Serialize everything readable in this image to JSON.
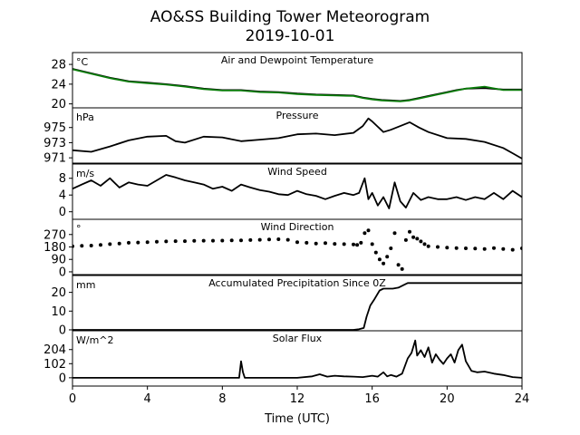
{
  "chart_data": {
    "type": "line",
    "title": "AO&SS Building Tower Meteorogram",
    "subtitle": "2019-10-01",
    "xlabel": "Time (UTC)",
    "xlim": [
      0,
      24
    ],
    "x_ticks": [
      "0",
      "4",
      "8",
      "12",
      "16",
      "20",
      "24"
    ],
    "panels": [
      {
        "title": "Air and Dewpoint Temperature",
        "unit": "°C",
        "ylim": [
          19.2,
          30.4
        ],
        "y_ticks": [
          "20",
          "24",
          "28"
        ],
        "y_tick_values": [
          20,
          24,
          28
        ],
        "series": [
          {
            "color": "#000000",
            "style": "line",
            "x": [
              0,
              1,
              2,
              3,
              4,
              5,
              6,
              7,
              8,
              9,
              10,
              11,
              12,
              13,
              14,
              15,
              15.5,
              16,
              16.5,
              17,
              17.5,
              18,
              18.5,
              19,
              19.5,
              20,
              20.5,
              21,
              22,
              23,
              24
            ],
            "y": [
              27.1,
              26.2,
              25.3,
              24.6,
              24.3,
              24.0,
              23.6,
              23.1,
              22.8,
              22.8,
              22.5,
              22.4,
              22.1,
              21.9,
              21.8,
              21.7,
              21.3,
              21.0,
              20.8,
              20.7,
              20.6,
              20.8,
              21.2,
              21.6,
              22.0,
              22.4,
              22.8,
              23.1,
              23.2,
              22.9,
              22.9
            ]
          },
          {
            "color": "#0a7d0a",
            "style": "line",
            "x": [
              0,
              1,
              2,
              3,
              4,
              5,
              6,
              7,
              8,
              9,
              10,
              11,
              12,
              13,
              14,
              15,
              15.5,
              16,
              16.5,
              17,
              17.5,
              18,
              18.5,
              19,
              19.5,
              20,
              20.5,
              21,
              22,
              23,
              24
            ],
            "y": [
              27.0,
              26.1,
              25.2,
              24.5,
              24.2,
              23.9,
              23.5,
              23.0,
              22.7,
              22.7,
              22.4,
              22.3,
              22.0,
              21.8,
              21.7,
              21.6,
              21.2,
              20.9,
              20.7,
              20.6,
              20.5,
              20.7,
              21.1,
              21.5,
              21.9,
              22.3,
              22.7,
              23.1,
              23.5,
              22.8,
              22.8
            ]
          }
        ]
      },
      {
        "title": "Pressure",
        "unit": "hPa",
        "ylim": [
          970.3,
          977.6
        ],
        "y_ticks": [
          "971",
          "973",
          "975"
        ],
        "y_tick_values": [
          971,
          973,
          975
        ],
        "series": [
          {
            "color": "#000000",
            "style": "line",
            "x": [
              0,
              1,
              2,
              3,
              4,
              5,
              5.5,
              6,
              7,
              8,
              9,
              10,
              11,
              12,
              13,
              14,
              15,
              15.5,
              15.8,
              16,
              16.3,
              16.6,
              17,
              17.5,
              18,
              18.5,
              19,
              20,
              21,
              22,
              23,
              23.5,
              24
            ],
            "y": [
              972.0,
              971.8,
              972.5,
              973.3,
              973.8,
              973.9,
              973.2,
              973.0,
              973.8,
              973.7,
              973.2,
              973.4,
              973.6,
              974.1,
              974.2,
              974.0,
              974.3,
              975.2,
              976.2,
              975.8,
              975.1,
              974.4,
              974.7,
              975.2,
              975.7,
              975.0,
              974.4,
              973.6,
              973.5,
              973.1,
              972.3,
              971.6,
              970.9
            ]
          }
        ]
      },
      {
        "title": "Wind Speed",
        "unit": "m/s",
        "ylim": [
          -1.8,
          11.4
        ],
        "y_ticks": [
          "0",
          "4",
          "8"
        ],
        "y_tick_values": [
          0,
          4,
          8
        ],
        "series": [
          {
            "color": "#000000",
            "style": "line",
            "x": [
              0,
              0.5,
              1,
              1.5,
              2,
              2.5,
              3,
              3.5,
              4,
              4.5,
              5,
              5.5,
              6,
              6.5,
              7,
              7.5,
              8,
              8.5,
              9,
              9.5,
              10,
              10.5,
              11,
              11.5,
              12,
              12.5,
              13,
              13.5,
              14,
              14.5,
              15,
              15.3,
              15.6,
              15.8,
              16,
              16.3,
              16.6,
              16.9,
              17.2,
              17.5,
              17.8,
              18.2,
              18.6,
              19,
              19.5,
              20,
              20.5,
              21,
              21.5,
              22,
              22.5,
              23,
              23.5,
              24
            ],
            "y": [
              5.5,
              6.5,
              7.5,
              6.2,
              8.0,
              5.8,
              7.0,
              6.5,
              6.2,
              7.5,
              8.8,
              8.2,
              7.5,
              7.0,
              6.5,
              5.5,
              6.0,
              5.0,
              6.5,
              5.8,
              5.2,
              4.8,
              4.2,
              4.0,
              5.0,
              4.2,
              3.8,
              3.0,
              3.8,
              4.5,
              4.0,
              4.5,
              8.0,
              3.0,
              4.5,
              1.5,
              3.5,
              0.8,
              7.0,
              2.5,
              1.0,
              4.5,
              2.8,
              3.5,
              3.0,
              3.0,
              3.5,
              2.8,
              3.5,
              3.0,
              4.5,
              3.0,
              5.0,
              3.5
            ]
          }
        ]
      },
      {
        "title": "Wind Direction",
        "unit": "°",
        "ylim": [
          -20,
          380
        ],
        "y_ticks": [
          "0",
          "90",
          "180",
          "270"
        ],
        "y_tick_values": [
          0,
          90,
          180,
          270
        ],
        "series": [
          {
            "color": "#000000",
            "style": "dots",
            "x": [
              0,
              0.5,
              1,
              1.5,
              2,
              2.5,
              3,
              3.5,
              4,
              4.5,
              5,
              5.5,
              6,
              6.5,
              7,
              7.5,
              8,
              8.5,
              9,
              9.5,
              10,
              10.5,
              11,
              11.5,
              12,
              12.5,
              13,
              13.5,
              14,
              14.5,
              15,
              15.2,
              15.4,
              15.6,
              15.8,
              16,
              16.2,
              16.4,
              16.6,
              16.8,
              17,
              17.2,
              17.4,
              17.6,
              17.8,
              18,
              18.2,
              18.4,
              18.6,
              18.8,
              19,
              19.5,
              20,
              20.5,
              21,
              21.5,
              22,
              22.5,
              23,
              23.5,
              24
            ],
            "y": [
              185,
              188,
              190,
              195,
              200,
              205,
              210,
              212,
              215,
              218,
              220,
              222,
              222,
              224,
              225,
              225,
              226,
              227,
              228,
              230,
              232,
              234,
              236,
              232,
              215,
              210,
              205,
              208,
              202,
              200,
              198,
              195,
              210,
              280,
              300,
              200,
              140,
              90,
              60,
              110,
              170,
              280,
              50,
              20,
              230,
              290,
              250,
              240,
              220,
              200,
              185,
              180,
              175,
              172,
              170,
              168,
              165,
              172,
              165,
              160,
              170
            ]
          }
        ]
      },
      {
        "title": "Accumulated Precipitation Since 0Z",
        "unit": "mm",
        "ylim": [
          -0.5,
          29
        ],
        "y_ticks": [
          "0",
          "10",
          "20"
        ],
        "y_tick_values": [
          0,
          10,
          20
        ],
        "series": [
          {
            "color": "#000000",
            "style": "line",
            "x": [
              0,
              15,
              15.3,
              15.55,
              15.7,
              15.9,
              16.1,
              16.4,
              16.6,
              16.8,
              17.1,
              17.4,
              17.7,
              17.9,
              18.2,
              18.5,
              19,
              20,
              21,
              22,
              23,
              24
            ],
            "y": [
              0,
              0,
              0.3,
              1.0,
              7.0,
              13.0,
              16.0,
              21.0,
              22.0,
              22.0,
              22.0,
              22.5,
              24.0,
              25.0,
              25.0,
              25.0,
              25.0,
              25.0,
              25.0,
              25.0,
              25.0,
              25.0
            ]
          }
        ]
      },
      {
        "title": "Solar Flux",
        "unit": "W/m^2",
        "ylim": [
          -60,
          340
        ],
        "y_ticks": [
          "0",
          "102",
          "204"
        ],
        "y_tick_values": [
          0,
          102,
          204
        ],
        "series": [
          {
            "color": "#000000",
            "style": "line",
            "x": [
              0,
              8.9,
              9.0,
              9.1,
              9.2,
              9.4,
              12,
              12.8,
              13.2,
              13.6,
              14,
              14.5,
              15,
              15.5,
              16,
              16.3,
              16.6,
              16.8,
              17,
              17.3,
              17.6,
              17.9,
              18.1,
              18.3,
              18.4,
              18.6,
              18.8,
              19,
              19.2,
              19.4,
              19.6,
              19.8,
              20,
              20.2,
              20.4,
              20.6,
              20.8,
              21,
              21.3,
              21.6,
              22,
              22.5,
              23,
              23.5,
              24
            ],
            "y": [
              0,
              0,
              120,
              40,
              0,
              0,
              0,
              10,
              25,
              8,
              15,
              10,
              8,
              5,
              15,
              8,
              40,
              10,
              20,
              8,
              30,
              140,
              180,
              270,
              160,
              200,
              150,
              220,
              110,
              170,
              130,
              100,
              140,
              170,
              110,
              200,
              240,
              120,
              50,
              40,
              45,
              30,
              20,
              5,
              0
            ]
          }
        ]
      }
    ]
  }
}
